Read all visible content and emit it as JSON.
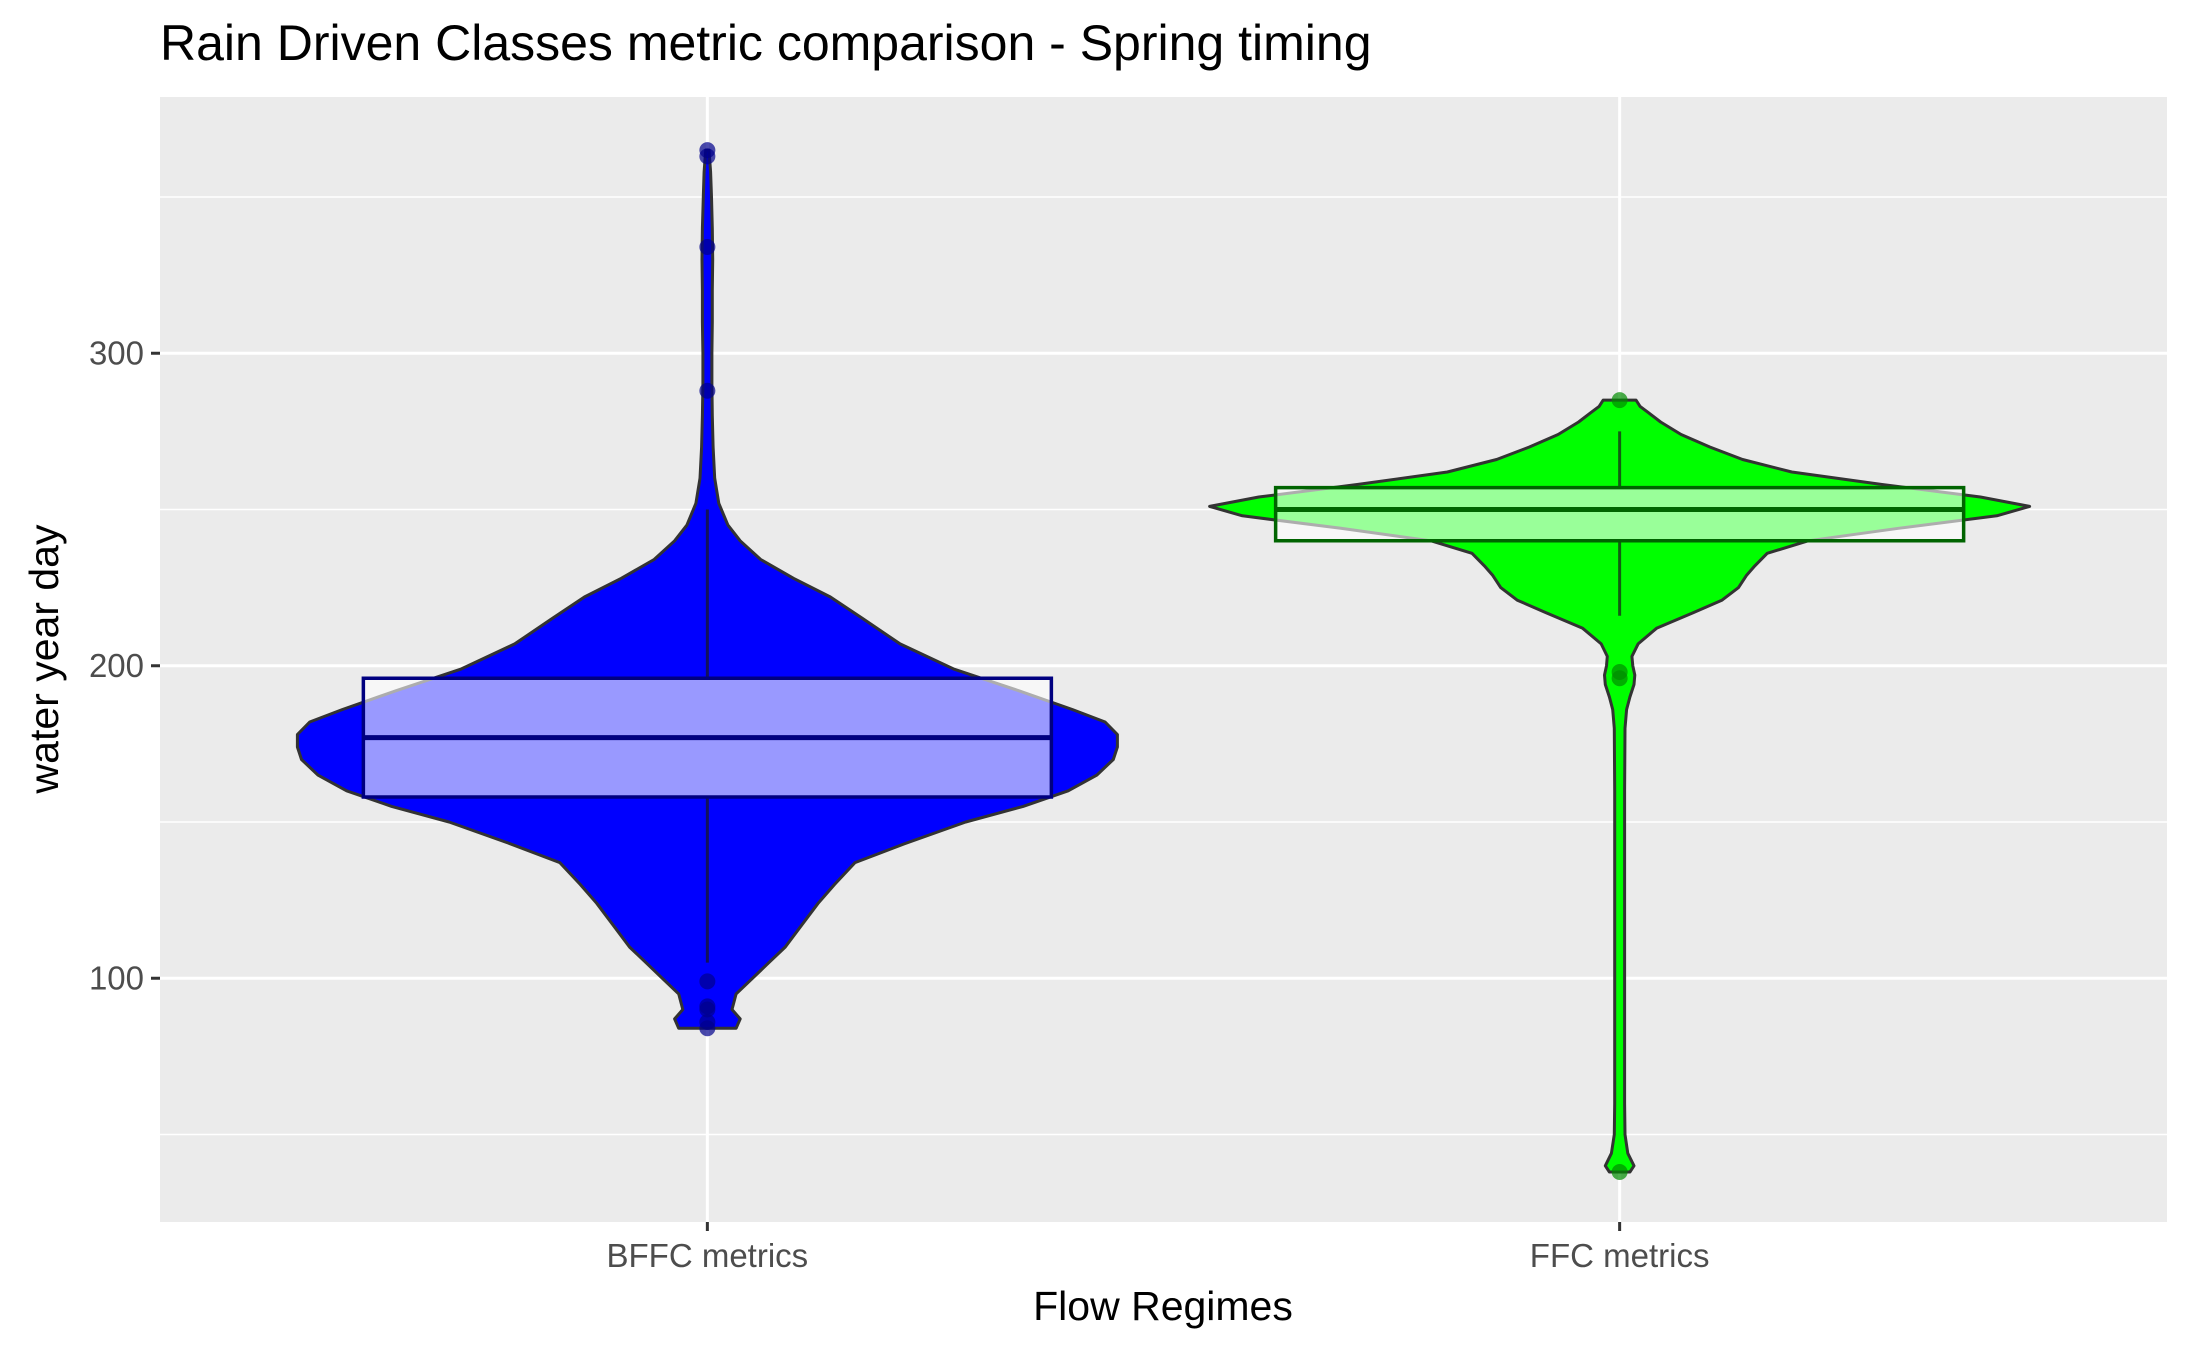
{
  "chart_data": {
    "type": "violin",
    "title": "Rain Driven Classes metric comparison - Spring timing",
    "xlabel": "Flow Regimes",
    "ylabel": "water year day",
    "ylim": [
      22,
      382
    ],
    "yticks": [
      100,
      200,
      300
    ],
    "ytick_labels": [
      "100",
      "200",
      "300"
    ],
    "grid": true,
    "categories": [
      "BFFC metrics",
      "FFC metrics"
    ],
    "series": [
      {
        "name": "BFFC metrics",
        "fill": "#0000ff",
        "box_fill": "#9999ff",
        "box_stroke": "#000080",
        "outlier_color": "#00008b",
        "min": 84,
        "max": 365,
        "box": {
          "q1": 158,
          "median": 177,
          "q3": 196,
          "whisker_low": 105,
          "whisker_high": 250
        },
        "outliers": [
          84,
          86,
          90,
          91,
          99,
          288,
          334,
          363,
          365
        ],
        "density": [
          [
            84,
            0.07
          ],
          [
            87,
            0.08
          ],
          [
            90,
            0.06
          ],
          [
            95,
            0.07
          ],
          [
            100,
            0.11
          ],
          [
            105,
            0.15
          ],
          [
            110,
            0.19
          ],
          [
            117,
            0.23
          ],
          [
            124,
            0.27
          ],
          [
            130,
            0.31
          ],
          [
            137,
            0.36
          ],
          [
            143,
            0.48
          ],
          [
            150,
            0.63
          ],
          [
            155,
            0.77
          ],
          [
            160,
            0.88
          ],
          [
            165,
            0.95
          ],
          [
            170,
            0.99
          ],
          [
            174,
            1.0
          ],
          [
            178,
            1.0
          ],
          [
            182,
            0.97
          ],
          [
            186,
            0.89
          ],
          [
            192,
            0.76
          ],
          [
            199,
            0.6
          ],
          [
            207,
            0.47
          ],
          [
            215,
            0.38
          ],
          [
            222,
            0.3
          ],
          [
            228,
            0.21
          ],
          [
            234,
            0.13
          ],
          [
            240,
            0.08
          ],
          [
            245,
            0.05
          ],
          [
            252,
            0.028
          ],
          [
            260,
            0.018
          ],
          [
            270,
            0.014
          ],
          [
            280,
            0.012
          ],
          [
            290,
            0.011
          ],
          [
            300,
            0.011
          ],
          [
            310,
            0.012
          ],
          [
            320,
            0.012
          ],
          [
            330,
            0.013
          ],
          [
            340,
            0.012
          ],
          [
            350,
            0.01
          ],
          [
            358,
            0.008
          ],
          [
            365,
            0.004
          ]
        ]
      },
      {
        "name": "FFC metrics",
        "fill": "#00ff00",
        "box_fill": "#99ff99",
        "box_stroke": "#006400",
        "outlier_color": "#008b00",
        "min": 38,
        "max": 285,
        "box": {
          "q1": 240,
          "median": 250,
          "q3": 257,
          "whisker_low": 216,
          "whisker_high": 275
        },
        "outliers": [
          38,
          196,
          198,
          285
        ],
        "density": [
          [
            38,
            0.025
          ],
          [
            40,
            0.035
          ],
          [
            44,
            0.02
          ],
          [
            50,
            0.013
          ],
          [
            60,
            0.012
          ],
          [
            80,
            0.012
          ],
          [
            100,
            0.012
          ],
          [
            120,
            0.012
          ],
          [
            140,
            0.012
          ],
          [
            160,
            0.012
          ],
          [
            180,
            0.013
          ],
          [
            186,
            0.017
          ],
          [
            190,
            0.025
          ],
          [
            194,
            0.035
          ],
          [
            197,
            0.037
          ],
          [
            200,
            0.032
          ],
          [
            203,
            0.03
          ],
          [
            207,
            0.045
          ],
          [
            212,
            0.09
          ],
          [
            217,
            0.18
          ],
          [
            221,
            0.25
          ],
          [
            225,
            0.29
          ],
          [
            229,
            0.31
          ],
          [
            232,
            0.33
          ],
          [
            236,
            0.36
          ],
          [
            240,
            0.46
          ],
          [
            244,
            0.68
          ],
          [
            248,
            0.92
          ],
          [
            251,
            1.0
          ],
          [
            254,
            0.88
          ],
          [
            258,
            0.64
          ],
          [
            262,
            0.42
          ],
          [
            266,
            0.3
          ],
          [
            270,
            0.22
          ],
          [
            274,
            0.15
          ],
          [
            278,
            0.1
          ],
          [
            281,
            0.07
          ],
          [
            283,
            0.05
          ],
          [
            285,
            0.04
          ]
        ]
      }
    ]
  }
}
